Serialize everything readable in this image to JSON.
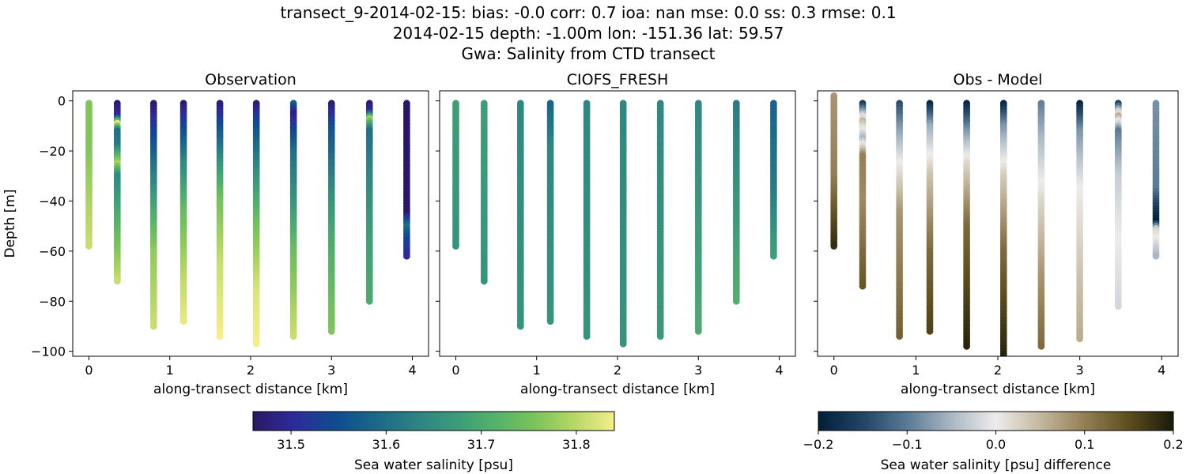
{
  "figure": {
    "title_lines": [
      "transect_9-2014-02-15: bias: -0.0  corr: 0.7  ioa: nan  mse: 0.0  ss: 0.3  rmse: 0.1",
      "2014-02-15 depth: -1.00m lon: -151.36 lat: 59.57",
      "Gwa: Salinity from CTD transect"
    ]
  },
  "chart_data": [
    {
      "type": "scatter",
      "title": "Observation",
      "xlabel": "along-transect distance [km]",
      "ylabel": "Depth [m]",
      "xlim": [
        -0.2,
        4.2
      ],
      "ylim": [
        -102,
        4
      ],
      "xticks": [
        0,
        1,
        2,
        3,
        4
      ],
      "yticks": [
        0,
        -20,
        -40,
        -60,
        -80,
        -100
      ],
      "ytick_labels": [
        "0",
        "−20",
        "−40",
        "−60",
        "−80",
        "−100"
      ],
      "colormap": "haline",
      "clim": [
        31.46,
        31.84
      ],
      "profiles": [
        {
          "x": 0.0,
          "max_depth": -58,
          "stops": [
            [
              0,
              31.76
            ],
            [
              -20,
              31.76
            ],
            [
              -40,
              31.79
            ],
            [
              -58,
              31.81
            ]
          ]
        },
        {
          "x": 0.35,
          "max_depth": -72,
          "stops": [
            [
              0,
              31.46
            ],
            [
              -6,
              31.5
            ],
            [
              -9,
              31.83
            ],
            [
              -12,
              31.6
            ],
            [
              -18,
              31.62
            ],
            [
              -25,
              31.79
            ],
            [
              -30,
              31.64
            ],
            [
              -50,
              31.72
            ],
            [
              -72,
              31.81
            ]
          ]
        },
        {
          "x": 0.8,
          "max_depth": -90,
          "stops": [
            [
              0,
              31.46
            ],
            [
              -10,
              31.52
            ],
            [
              -25,
              31.6
            ],
            [
              -40,
              31.68
            ],
            [
              -60,
              31.77
            ],
            [
              -90,
              31.81
            ]
          ]
        },
        {
          "x": 1.17,
          "max_depth": -88,
          "stops": [
            [
              0,
              31.46
            ],
            [
              -12,
              31.55
            ],
            [
              -25,
              31.64
            ],
            [
              -45,
              31.74
            ],
            [
              -70,
              31.8
            ],
            [
              -88,
              31.83
            ]
          ]
        },
        {
          "x": 1.62,
          "max_depth": -94,
          "stops": [
            [
              0,
              31.46
            ],
            [
              -10,
              31.55
            ],
            [
              -25,
              31.66
            ],
            [
              -40,
              31.75
            ],
            [
              -65,
              31.81
            ],
            [
              -94,
              31.84
            ]
          ]
        },
        {
          "x": 2.07,
          "max_depth": -97,
          "stops": [
            [
              0,
              31.46
            ],
            [
              -10,
              31.55
            ],
            [
              -30,
              31.66
            ],
            [
              -50,
              31.75
            ],
            [
              -75,
              31.82
            ],
            [
              -97,
              31.84
            ]
          ]
        },
        {
          "x": 2.53,
          "max_depth": -94,
          "stops": [
            [
              0,
              31.6
            ],
            [
              -5,
              31.48
            ],
            [
              -20,
              31.6
            ],
            [
              -40,
              31.66
            ],
            [
              -60,
              31.74
            ],
            [
              -94,
              31.81
            ]
          ]
        },
        {
          "x": 3.0,
          "max_depth": -92,
          "stops": [
            [
              0,
              31.46
            ],
            [
              -10,
              31.55
            ],
            [
              -30,
              31.63
            ],
            [
              -55,
              31.7
            ],
            [
              -92,
              31.76
            ]
          ]
        },
        {
          "x": 3.47,
          "max_depth": -80,
          "stops": [
            [
              0,
              31.46
            ],
            [
              -4,
              31.5
            ],
            [
              -7,
              31.78
            ],
            [
              -12,
              31.6
            ],
            [
              -30,
              31.64
            ],
            [
              -55,
              31.68
            ],
            [
              -80,
              31.7
            ]
          ]
        },
        {
          "x": 3.93,
          "max_depth": -62,
          "stops": [
            [
              0,
              31.46
            ],
            [
              -45,
              31.46
            ],
            [
              -50,
              31.6
            ],
            [
              -55,
              31.54
            ],
            [
              -62,
              31.5
            ]
          ]
        }
      ]
    },
    {
      "type": "scatter",
      "title": "CIOFS_FRESH",
      "xlabel": "along-transect distance [km]",
      "ylabel": "",
      "xlim": [
        -0.2,
        4.2
      ],
      "ylim": [
        -102,
        4
      ],
      "xticks": [
        0,
        1,
        2,
        3,
        4
      ],
      "colormap": "haline",
      "clim": [
        31.46,
        31.84
      ],
      "profiles": [
        {
          "x": 0.0,
          "max_depth": -58,
          "stops": [
            [
              0,
              31.68
            ],
            [
              -58,
              31.66
            ]
          ]
        },
        {
          "x": 0.35,
          "max_depth": -72,
          "stops": [
            [
              0,
              31.68
            ],
            [
              -72,
              31.66
            ]
          ]
        },
        {
          "x": 0.8,
          "max_depth": -90,
          "stops": [
            [
              0,
              31.64
            ],
            [
              -90,
              31.66
            ]
          ]
        },
        {
          "x": 1.17,
          "max_depth": -88,
          "stops": [
            [
              0,
              31.58
            ],
            [
              -20,
              31.64
            ],
            [
              -88,
              31.66
            ]
          ]
        },
        {
          "x": 1.62,
          "max_depth": -94,
          "stops": [
            [
              0,
              31.64
            ],
            [
              -94,
              31.66
            ]
          ]
        },
        {
          "x": 2.07,
          "max_depth": -97,
          "stops": [
            [
              0,
              31.64
            ],
            [
              -97,
              31.66
            ]
          ]
        },
        {
          "x": 2.53,
          "max_depth": -94,
          "stops": [
            [
              0,
              31.64
            ],
            [
              -94,
              31.67
            ]
          ]
        },
        {
          "x": 3.0,
          "max_depth": -92,
          "stops": [
            [
              0,
              31.64
            ],
            [
              -92,
              31.7
            ]
          ]
        },
        {
          "x": 3.47,
          "max_depth": -80,
          "stops": [
            [
              0,
              31.62
            ],
            [
              -80,
              31.71
            ]
          ]
        },
        {
          "x": 3.93,
          "max_depth": -62,
          "stops": [
            [
              0,
              31.58
            ],
            [
              -35,
              31.62
            ],
            [
              -62,
              31.68
            ]
          ]
        }
      ]
    },
    {
      "type": "scatter",
      "title": "Obs - Model",
      "xlabel": "along-transect distance [km]",
      "ylabel": "",
      "xlim": [
        -0.2,
        4.2
      ],
      "ylim": [
        -102,
        4
      ],
      "xticks": [
        0,
        1,
        2,
        3,
        4
      ],
      "colormap": "diff",
      "clim": [
        -0.2,
        0.2
      ],
      "profiles": [
        {
          "x": 0.0,
          "max_depth": -58,
          "top_depth": 2,
          "stops": [
            [
              2,
              0.08
            ],
            [
              -30,
              0.1
            ],
            [
              -58,
              0.18
            ]
          ]
        },
        {
          "x": 0.35,
          "max_depth": -74,
          "stops": [
            [
              0,
              -0.2
            ],
            [
              -8,
              0.05
            ],
            [
              -15,
              -0.05
            ],
            [
              -22,
              0.1
            ],
            [
              -40,
              0.09
            ],
            [
              -74,
              0.14
            ]
          ]
        },
        {
          "x": 0.8,
          "max_depth": -94,
          "stops": [
            [
              0,
              -0.15
            ],
            [
              -10,
              -0.08
            ],
            [
              -25,
              0.0
            ],
            [
              -45,
              0.08
            ],
            [
              -94,
              0.13
            ]
          ]
        },
        {
          "x": 1.17,
          "max_depth": -92,
          "stops": [
            [
              0,
              -0.2
            ],
            [
              -10,
              -0.06
            ],
            [
              -30,
              0.04
            ],
            [
              -60,
              0.12
            ],
            [
              -92,
              0.16
            ]
          ]
        },
        {
          "x": 1.62,
          "max_depth": -98,
          "stops": [
            [
              0,
              -0.2
            ],
            [
              -12,
              -0.08
            ],
            [
              -25,
              0.02
            ],
            [
              -50,
              0.12
            ],
            [
              -98,
              0.19
            ]
          ]
        },
        {
          "x": 2.07,
          "max_depth": -102,
          "stops": [
            [
              0,
              -0.2
            ],
            [
              -10,
              -0.08
            ],
            [
              -30,
              0.03
            ],
            [
              -60,
              0.12
            ],
            [
              -102,
              0.19
            ]
          ]
        },
        {
          "x": 2.53,
          "max_depth": -98,
          "stops": [
            [
              0,
              -0.1
            ],
            [
              -15,
              -0.05
            ],
            [
              -40,
              0.02
            ],
            [
              -70,
              0.08
            ],
            [
              -98,
              0.12
            ]
          ]
        },
        {
          "x": 3.0,
          "max_depth": -95,
          "stops": [
            [
              0,
              -0.2
            ],
            [
              -12,
              -0.08
            ],
            [
              -35,
              0.0
            ],
            [
              -70,
              0.04
            ],
            [
              -95,
              0.06
            ]
          ]
        },
        {
          "x": 3.47,
          "max_depth": -82,
          "stops": [
            [
              0,
              -0.2
            ],
            [
              -6,
              0.06
            ],
            [
              -12,
              -0.1
            ],
            [
              -30,
              -0.03
            ],
            [
              -55,
              0.0
            ],
            [
              -82,
              -0.02
            ]
          ]
        },
        {
          "x": 3.93,
          "max_depth": -62,
          "stops": [
            [
              0,
              -0.08
            ],
            [
              -35,
              -0.1
            ],
            [
              -48,
              -0.2
            ],
            [
              -52,
              0.02
            ],
            [
              -62,
              -0.05
            ]
          ]
        }
      ]
    }
  ],
  "colorbars": [
    {
      "name": "salinity",
      "label": "Sea water salinity [psu]",
      "colormap": "haline",
      "range": [
        31.46,
        31.84
      ],
      "ticks": [
        31.5,
        31.6,
        31.7,
        31.8
      ],
      "tick_labels": [
        "31.5",
        "31.6",
        "31.7",
        "31.8"
      ]
    },
    {
      "name": "difference",
      "label": "Sea water salinity [psu] difference",
      "colormap": "diff",
      "range": [
        -0.2,
        0.2
      ],
      "ticks": [
        -0.2,
        -0.1,
        0.0,
        0.1,
        0.2
      ],
      "tick_labels": [
        "−0.2",
        "−0.1",
        "0.0",
        "0.1",
        "0.2"
      ]
    }
  ],
  "colormaps": {
    "haline": [
      "#2a1864",
      "#2e2a9a",
      "#0f4a91",
      "#1a6689",
      "#2b8183",
      "#3a9a7a",
      "#53b16b",
      "#7ac35b",
      "#b7d765",
      "#f4ee8c"
    ],
    "diff": [
      "#001f39",
      "#224466",
      "#5a7a96",
      "#aab8c4",
      "#eeeceb",
      "#c4b8a0",
      "#947f55",
      "#5c4e1c",
      "#1a1a0a"
    ]
  }
}
